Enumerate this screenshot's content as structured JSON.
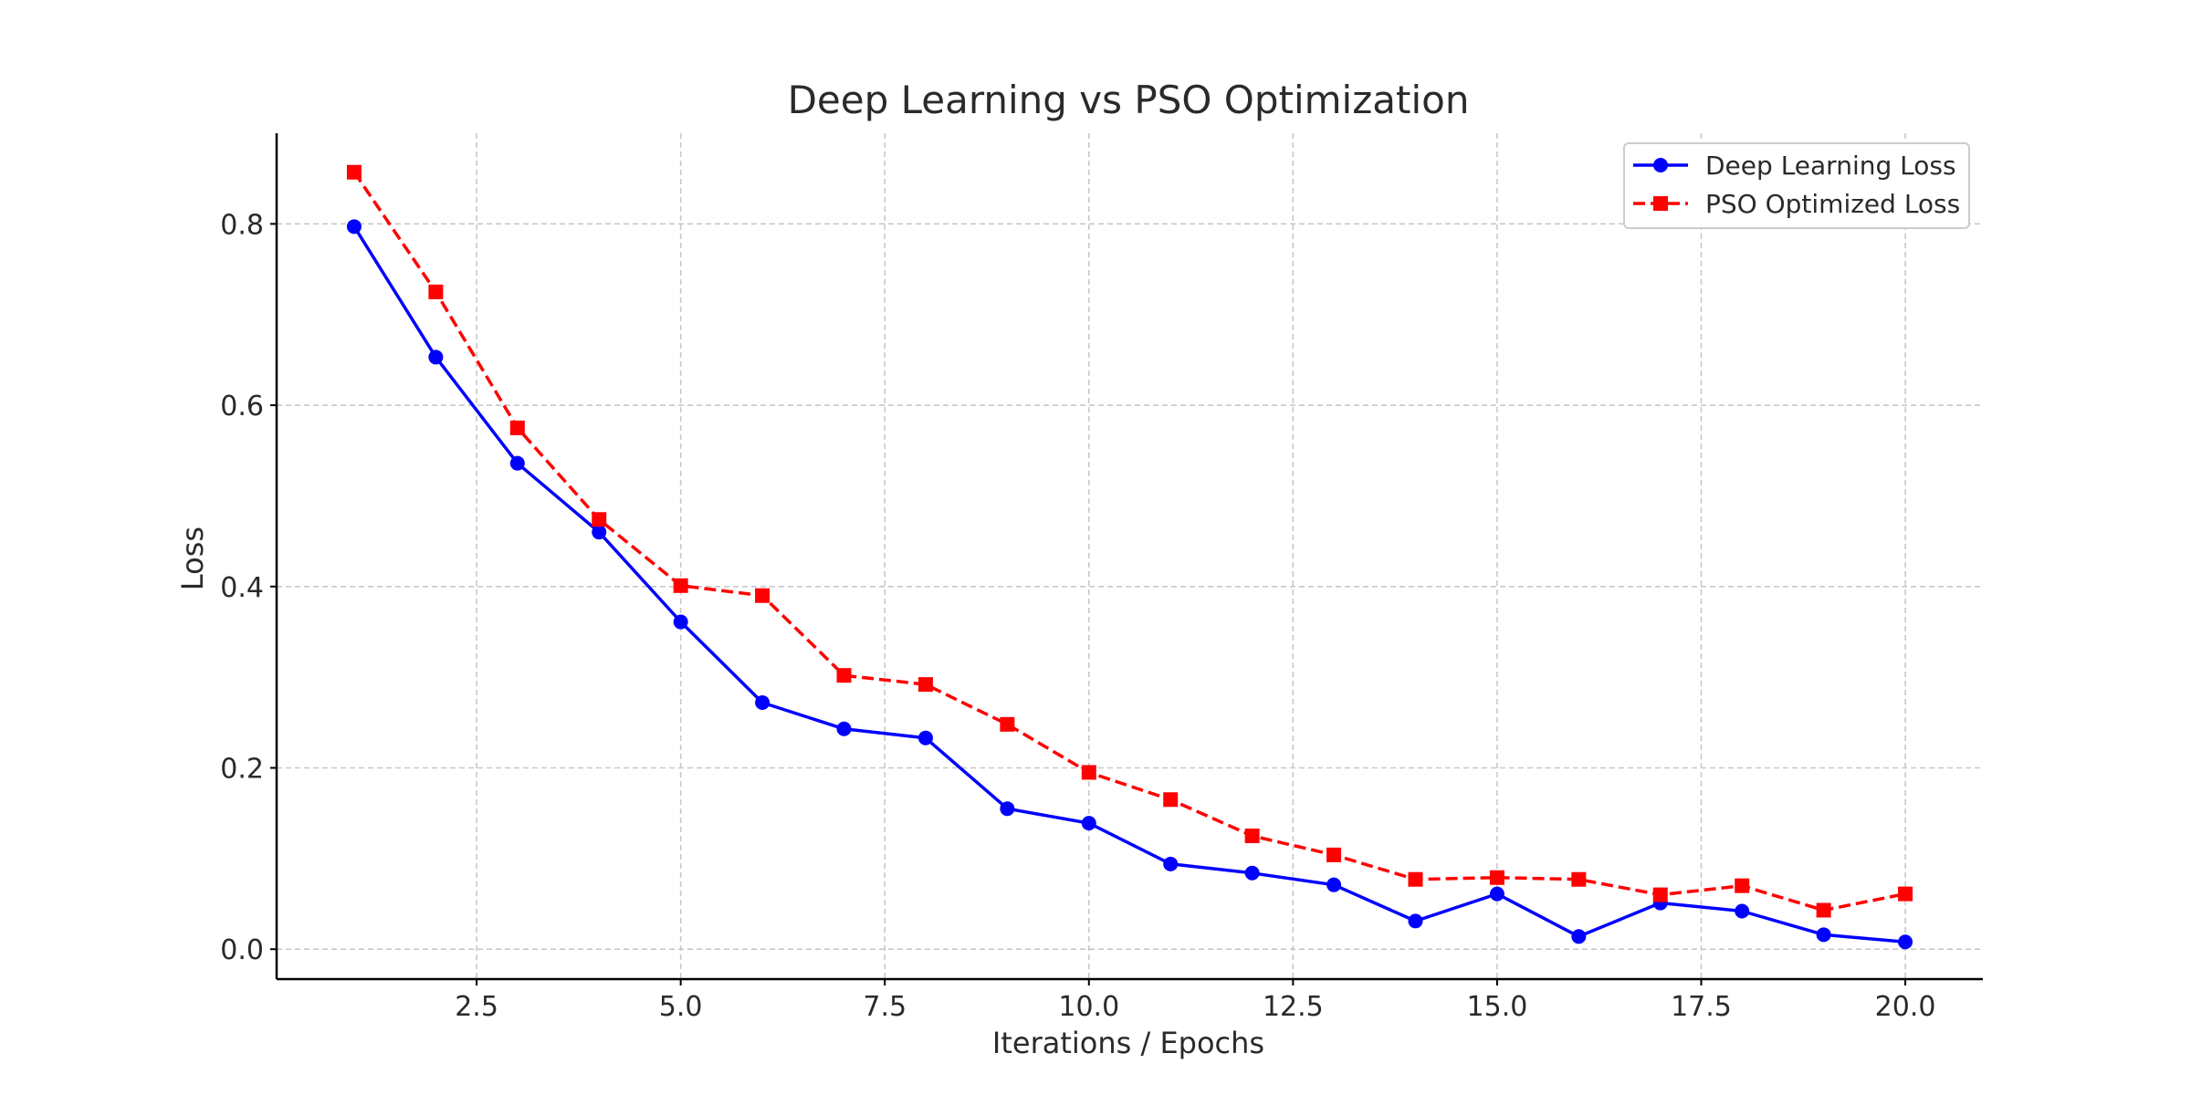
{
  "chart_data": {
    "type": "line",
    "title": "Deep Learning vs PSO Optimization",
    "xlabel": "Iterations / Epochs",
    "ylabel": "Loss",
    "xlim": [
      0.05,
      20.95
    ],
    "ylim": [
      -0.033,
      0.9
    ],
    "xticks": [
      "2.5",
      "5.0",
      "7.5",
      "10.0",
      "12.5",
      "15.0",
      "17.5",
      "20.0"
    ],
    "xtick_values": [
      2.5,
      5.0,
      7.5,
      10.0,
      12.5,
      15.0,
      17.5,
      20.0
    ],
    "yticks": [
      "0.0",
      "0.2",
      "0.4",
      "0.6",
      "0.8"
    ],
    "ytick_values": [
      0.0,
      0.2,
      0.4,
      0.6,
      0.8
    ],
    "grid": true,
    "legend_position": "top-right",
    "x": [
      1,
      2,
      3,
      4,
      5,
      6,
      7,
      8,
      9,
      10,
      11,
      12,
      13,
      14,
      15,
      16,
      17,
      18,
      19,
      20
    ],
    "series": [
      {
        "name": "Deep Learning Loss",
        "color": "#0000ff",
        "line_style": "solid",
        "marker": "circle",
        "values": [
          0.797,
          0.653,
          0.536,
          0.46,
          0.361,
          0.272,
          0.243,
          0.233,
          0.155,
          0.139,
          0.094,
          0.084,
          0.071,
          0.031,
          0.061,
          0.014,
          0.051,
          0.042,
          0.016,
          0.008
        ]
      },
      {
        "name": "PSO Optimized Loss",
        "color": "#ff0000",
        "line_style": "dashed",
        "marker": "square",
        "values": [
          0.857,
          0.725,
          0.575,
          0.474,
          0.401,
          0.39,
          0.302,
          0.292,
          0.248,
          0.195,
          0.165,
          0.125,
          0.104,
          0.077,
          0.079,
          0.077,
          0.06,
          0.07,
          0.043,
          0.061
        ]
      }
    ]
  }
}
